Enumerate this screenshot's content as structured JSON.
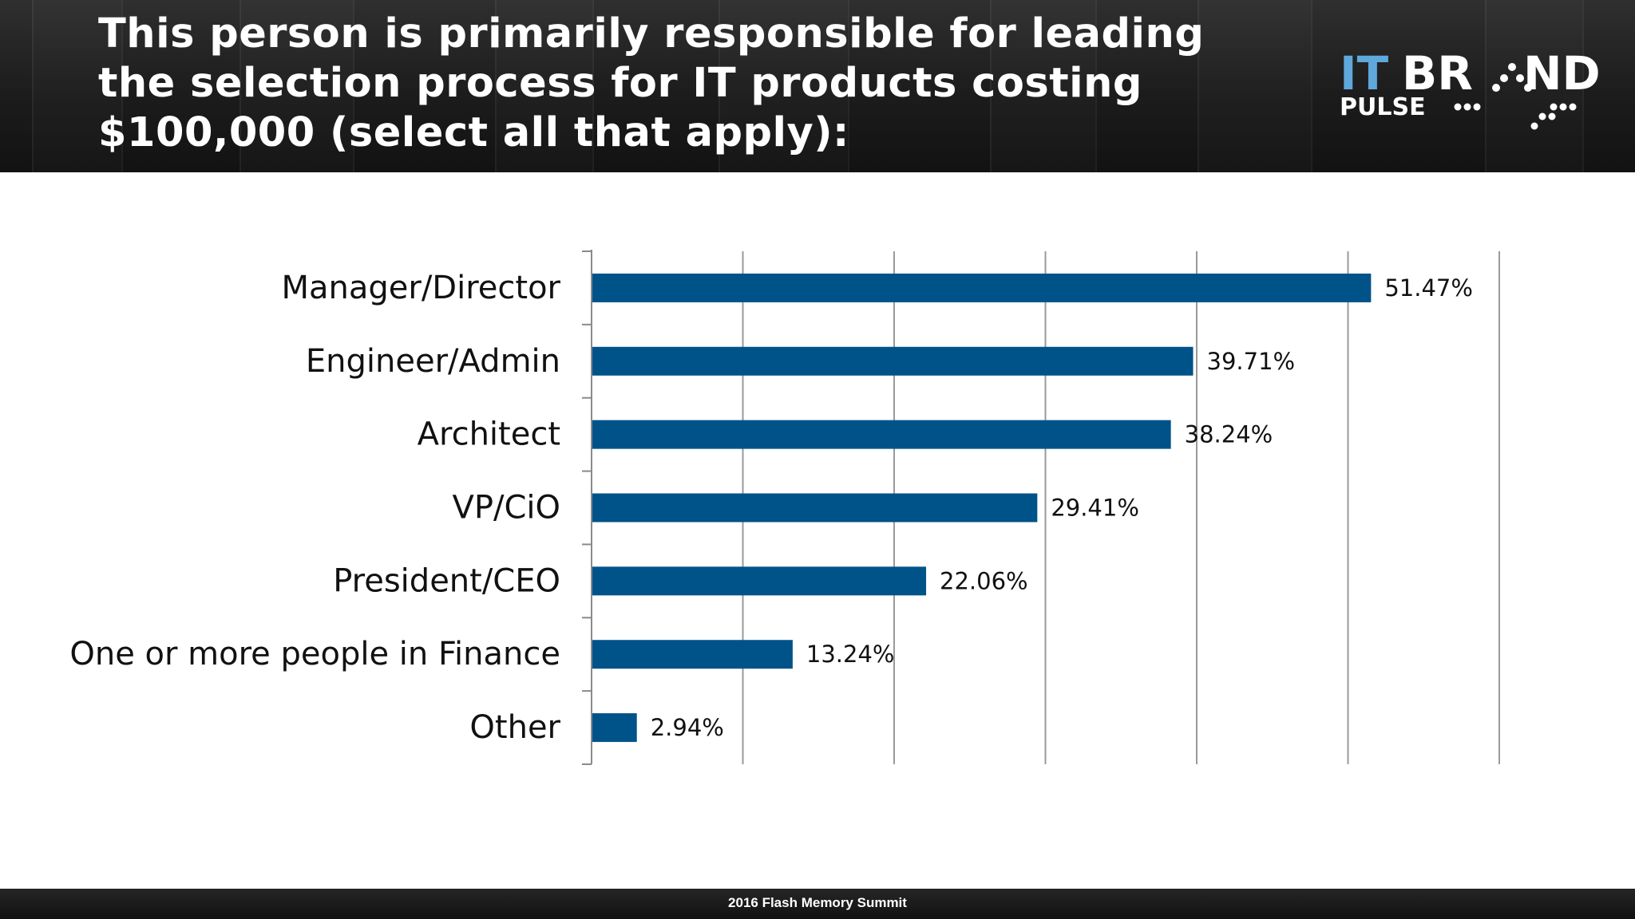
{
  "slide": {
    "title": "This person is primarily responsible for leading the selection process for IT products costing $100,000 (select all that apply):",
    "footer": "2016 Flash Memory Summit"
  },
  "logo": {
    "line1_a": "IT",
    "line1_b": "BR",
    "line1_c": "ND",
    "line2": "PULSE"
  },
  "colors": {
    "bar": "#005389",
    "header_bg": "#1e1e1e",
    "logo_blue": "#5fa8dc"
  },
  "chart_data": {
    "type": "bar",
    "orientation": "horizontal",
    "categories": [
      "Manager/Director",
      "Engineer/Admin",
      "Architect",
      "VP/CiO",
      "President/CEO",
      "One or more people in Finance",
      "Other"
    ],
    "values": [
      51.47,
      39.71,
      38.24,
      29.41,
      22.06,
      13.24,
      2.94
    ],
    "value_labels": [
      "51.47%",
      "39.71%",
      "38.24%",
      "29.41%",
      "22.06%",
      "13.24%",
      "2.94%"
    ],
    "xlim": [
      0,
      60
    ],
    "grid": true,
    "legend": "none",
    "title": "",
    "xlabel": "",
    "ylabel": ""
  }
}
